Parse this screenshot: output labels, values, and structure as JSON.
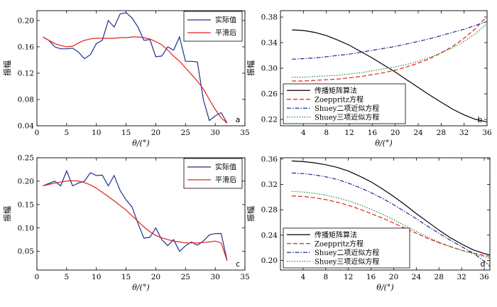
{
  "chart_data": [
    {
      "id": "a",
      "type": "line",
      "panel_label": "a",
      "xlabel": "θ/(°)",
      "ylabel": "振幅",
      "xlim": [
        0,
        35
      ],
      "ylim": [
        0.04,
        0.215
      ],
      "xticks": [
        0,
        5,
        10,
        15,
        20,
        25,
        30,
        35
      ],
      "xtick_labels": [
        "0",
        "5",
        "10",
        "15",
        "20",
        "25",
        "30",
        "35"
      ],
      "yticks": [
        0.04,
        0.08,
        0.12,
        0.16,
        0.2
      ],
      "ytick_labels": [
        "0.04",
        "0.08",
        "0.12",
        "0.16",
        "0.20"
      ],
      "legend_position": "top-right",
      "series": [
        {
          "name": "实际值",
          "color": "#1f2f8f",
          "dash": "",
          "x": [
            1,
            2,
            3,
            4,
            5,
            6,
            7,
            8,
            9,
            10,
            11,
            12,
            13,
            14,
            15,
            16,
            17,
            18,
            19,
            20,
            21,
            22,
            23,
            24,
            25,
            26,
            27,
            28,
            29,
            30,
            31,
            32
          ],
          "y": [
            0.175,
            0.17,
            0.16,
            0.157,
            0.157,
            0.158,
            0.152,
            0.142,
            0.148,
            0.165,
            0.17,
            0.2,
            0.19,
            0.21,
            0.212,
            0.204,
            0.19,
            0.17,
            0.171,
            0.145,
            0.146,
            0.16,
            0.155,
            0.175,
            0.138,
            0.138,
            0.137,
            0.08,
            0.048,
            0.055,
            0.06,
            0.044
          ]
        },
        {
          "name": "平滑后",
          "color": "#e0201a",
          "dash": "",
          "x": [
            1,
            2,
            3,
            4,
            5,
            6,
            7,
            8,
            9,
            10,
            11,
            12,
            13,
            14,
            15,
            16,
            17,
            18,
            19,
            20,
            21,
            22,
            23,
            24,
            25,
            26,
            27,
            28,
            29,
            30,
            31,
            32
          ],
          "y": [
            0.175,
            0.17,
            0.165,
            0.162,
            0.16,
            0.161,
            0.166,
            0.17,
            0.172,
            0.173,
            0.173,
            0.173,
            0.173,
            0.174,
            0.174,
            0.175,
            0.175,
            0.174,
            0.172,
            0.168,
            0.163,
            0.155,
            0.146,
            0.138,
            0.128,
            0.118,
            0.108,
            0.096,
            0.08,
            0.065,
            0.052,
            0.044
          ]
        }
      ]
    },
    {
      "id": "b",
      "type": "line",
      "panel_label": "b",
      "xlabel": "θ/(°)",
      "ylabel": "振幅",
      "xlim": [
        0,
        36
      ],
      "ylim": [
        0.21,
        0.39
      ],
      "xticks": [
        4,
        8,
        12,
        16,
        20,
        24,
        28,
        32,
        36
      ],
      "xtick_labels": [
        "4",
        "8",
        "12",
        "16",
        "20",
        "24",
        "28",
        "32",
        "36"
      ],
      "yticks": [
        0.22,
        0.26,
        0.3,
        0.34,
        0.38
      ],
      "ytick_labels": [
        "0.22",
        "0.26",
        "0.30",
        "0.34",
        "0.38"
      ],
      "legend_position": "bottom-left",
      "series": [
        {
          "name": "传播矩阵算法",
          "color": "#000000",
          "dash": "",
          "x": [
            2,
            4,
            6,
            8,
            10,
            12,
            14,
            16,
            18,
            20,
            22,
            24,
            26,
            28,
            30,
            32,
            34,
            36
          ],
          "y": [
            0.36,
            0.359,
            0.356,
            0.351,
            0.344,
            0.336,
            0.326,
            0.316,
            0.305,
            0.294,
            0.282,
            0.27,
            0.258,
            0.247,
            0.236,
            0.227,
            0.22,
            0.216
          ]
        },
        {
          "name": "Zoeppritz方程",
          "color": "#e0201a",
          "dash": "6,3",
          "x": [
            2,
            4,
            6,
            8,
            10,
            12,
            14,
            16,
            18,
            20,
            22,
            24,
            26,
            28,
            30,
            32,
            34,
            35,
            36
          ],
          "y": [
            0.28,
            0.28,
            0.281,
            0.282,
            0.283,
            0.285,
            0.287,
            0.29,
            0.293,
            0.297,
            0.302,
            0.308,
            0.315,
            0.324,
            0.334,
            0.347,
            0.362,
            0.372,
            0.38
          ]
        },
        {
          "name": "Shuey二项近似方程",
          "color": "#1f2f8f",
          "dash": "6,2,1.5,2",
          "x": [
            2,
            4,
            6,
            8,
            10,
            12,
            14,
            16,
            18,
            20,
            22,
            24,
            26,
            28,
            30,
            32,
            34,
            36
          ],
          "y": [
            0.314,
            0.315,
            0.316,
            0.318,
            0.32,
            0.322,
            0.325,
            0.328,
            0.331,
            0.334,
            0.338,
            0.342,
            0.346,
            0.351,
            0.356,
            0.361,
            0.367,
            0.373
          ]
        },
        {
          "name": "Shuey三项近似方程",
          "color": "#1a8a2a",
          "dash": "1.5,2",
          "x": [
            2,
            4,
            6,
            8,
            10,
            12,
            14,
            16,
            18,
            20,
            22,
            24,
            26,
            28,
            30,
            32,
            34,
            36
          ],
          "y": [
            0.286,
            0.286,
            0.287,
            0.288,
            0.289,
            0.291,
            0.293,
            0.296,
            0.299,
            0.302,
            0.306,
            0.311,
            0.317,
            0.324,
            0.332,
            0.342,
            0.354,
            0.37
          ]
        }
      ]
    },
    {
      "id": "c",
      "type": "line",
      "panel_label": "c",
      "xlabel": "θ/(°)",
      "ylabel": "振幅",
      "xlim": [
        0,
        35
      ],
      "ylim": [
        0.01,
        0.25
      ],
      "xticks": [
        0,
        5,
        10,
        15,
        20,
        25,
        30,
        35
      ],
      "xtick_labels": [
        "0",
        "5",
        "10",
        "15",
        "20",
        "25",
        "30",
        "35"
      ],
      "yticks": [
        0.05,
        0.1,
        0.15,
        0.2,
        0.25
      ],
      "ytick_labels": [
        "0.05",
        "0.10",
        "0.15",
        "0.20",
        "0.25"
      ],
      "legend_position": "top-right",
      "series": [
        {
          "name": "实际值",
          "color": "#1f2f8f",
          "dash": "",
          "x": [
            1,
            2,
            3,
            4,
            5,
            6,
            7,
            8,
            9,
            10,
            11,
            12,
            13,
            14,
            15,
            16,
            17,
            18,
            19,
            20,
            21,
            22,
            23,
            24,
            25,
            26,
            27,
            28,
            29,
            30,
            31,
            32
          ],
          "y": [
            0.19,
            0.195,
            0.2,
            0.19,
            0.222,
            0.19,
            0.196,
            0.2,
            0.218,
            0.212,
            0.213,
            0.19,
            0.212,
            0.18,
            0.16,
            0.145,
            0.11,
            0.078,
            0.08,
            0.1,
            0.075,
            0.062,
            0.075,
            0.05,
            0.062,
            0.07,
            0.063,
            0.072,
            0.085,
            0.088,
            0.088,
            0.03
          ]
        },
        {
          "name": "平滑后",
          "color": "#e0201a",
          "dash": "",
          "x": [
            1,
            2,
            3,
            4,
            5,
            6,
            7,
            8,
            9,
            10,
            11,
            12,
            13,
            14,
            15,
            16,
            17,
            18,
            19,
            20,
            21,
            22,
            23,
            24,
            25,
            26,
            27,
            28,
            29,
            30,
            31,
            32
          ],
          "y": [
            0.19,
            0.193,
            0.196,
            0.198,
            0.2,
            0.201,
            0.2,
            0.197,
            0.192,
            0.185,
            0.176,
            0.167,
            0.158,
            0.148,
            0.138,
            0.126,
            0.114,
            0.102,
            0.092,
            0.084,
            0.079,
            0.075,
            0.072,
            0.07,
            0.068,
            0.068,
            0.068,
            0.069,
            0.07,
            0.072,
            0.068,
            0.03
          ]
        }
      ]
    },
    {
      "id": "d",
      "type": "line",
      "panel_label": "d",
      "xlabel": "θ/(°)",
      "ylabel": "振幅",
      "xlim": [
        0,
        37
      ],
      "ylim": [
        0.185,
        0.362
      ],
      "xticks": [
        4,
        8,
        12,
        16,
        20,
        24,
        28,
        32,
        36
      ],
      "xtick_labels": [
        "4",
        "8",
        "12",
        "16",
        "20",
        "24",
        "28",
        "32",
        "36"
      ],
      "yticks": [
        0.2,
        0.24,
        0.28,
        0.32,
        0.36
      ],
      "ytick_labels": [
        "0.20",
        "0.24",
        "0.28",
        "0.32",
        "0.36"
      ],
      "legend_position": "bottom-left",
      "series": [
        {
          "name": "传播矩阵算法",
          "color": "#000000",
          "dash": "",
          "x": [
            2,
            4,
            6,
            8,
            10,
            12,
            14,
            16,
            18,
            20,
            22,
            24,
            26,
            28,
            30,
            32,
            34,
            36,
            37
          ],
          "y": [
            0.357,
            0.356,
            0.354,
            0.351,
            0.347,
            0.341,
            0.333,
            0.324,
            0.313,
            0.301,
            0.288,
            0.274,
            0.261,
            0.248,
            0.236,
            0.226,
            0.217,
            0.211,
            0.209
          ]
        },
        {
          "name": "Zoeppritz方程",
          "color": "#e0201a",
          "dash": "6,3",
          "x": [
            2,
            4,
            6,
            8,
            10,
            12,
            14,
            16,
            18,
            20,
            22,
            24,
            26,
            28,
            30,
            32,
            34,
            36,
            37
          ],
          "y": [
            0.302,
            0.301,
            0.299,
            0.296,
            0.292,
            0.287,
            0.281,
            0.274,
            0.267,
            0.259,
            0.251,
            0.243,
            0.235,
            0.228,
            0.222,
            0.216,
            0.212,
            0.208,
            0.207
          ]
        },
        {
          "name": "Shuey二项近似方程",
          "color": "#1f2f8f",
          "dash": "6,2,1.5,2",
          "x": [
            2,
            4,
            6,
            8,
            10,
            12,
            14,
            16,
            18,
            20,
            22,
            24,
            26,
            28,
            30,
            32,
            34,
            36,
            37
          ],
          "y": [
            0.338,
            0.337,
            0.335,
            0.332,
            0.328,
            0.322,
            0.315,
            0.307,
            0.298,
            0.288,
            0.277,
            0.266,
            0.254,
            0.243,
            0.232,
            0.222,
            0.212,
            0.199,
            0.191
          ]
        },
        {
          "name": "Shuey三项近似方程",
          "color": "#1a8a2a",
          "dash": "1.5,2",
          "x": [
            2,
            4,
            6,
            8,
            10,
            12,
            14,
            16,
            18,
            20,
            22,
            24,
            26,
            28,
            30,
            32,
            34,
            36,
            37
          ],
          "y": [
            0.309,
            0.308,
            0.306,
            0.303,
            0.299,
            0.294,
            0.288,
            0.281,
            0.273,
            0.264,
            0.255,
            0.246,
            0.237,
            0.229,
            0.222,
            0.216,
            0.211,
            0.206,
            0.204
          ]
        }
      ]
    }
  ]
}
